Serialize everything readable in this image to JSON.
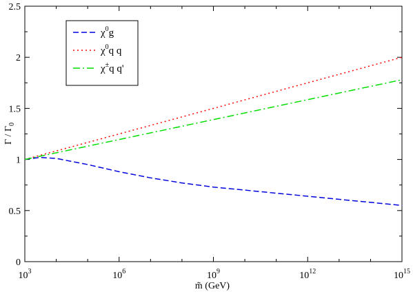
{
  "chart_data": {
    "type": "line",
    "title": "",
    "xlabel": "m̃ (GeV)",
    "ylabel": "Γ / Γ",
    "ylabel_sub": "0",
    "x_scale": "log",
    "xlim": [
      1000,
      1000000000000000.0
    ],
    "ylim": [
      0,
      2.5
    ],
    "grid": false,
    "legend_position": "top-left",
    "x_ticks": [
      {
        "value": 1000,
        "base": "10",
        "exp": "3"
      },
      {
        "value": 1000000,
        "base": "10",
        "exp": "6"
      },
      {
        "value": 1000000000,
        "base": "10",
        "exp": "9"
      },
      {
        "value": 1000000000000,
        "base": "10",
        "exp": "12"
      },
      {
        "value": 1000000000000000,
        "base": "10",
        "exp": "15"
      }
    ],
    "y_ticks": [
      {
        "value": 0,
        "label": "0"
      },
      {
        "value": 0.5,
        "label": "0.5"
      },
      {
        "value": 1,
        "label": "1"
      },
      {
        "value": 1.5,
        "label": "1.5"
      },
      {
        "value": 2,
        "label": "2"
      },
      {
        "value": 2.5,
        "label": "2.5"
      }
    ],
    "series": [
      {
        "name_main": "χ",
        "name_sup": "0",
        "name_rest": "g",
        "color": "#0000dd",
        "dash": "8,4",
        "x": [
          1000,
          3000,
          10000,
          100000,
          1000000,
          10000000,
          100000000,
          1000000000,
          10000000000,
          100000000000,
          1000000000000,
          10000000000000,
          100000000000000,
          1000000000000000
        ],
        "y": [
          1.0,
          1.02,
          1.01,
          0.95,
          0.88,
          0.82,
          0.77,
          0.73,
          0.7,
          0.67,
          0.64,
          0.61,
          0.58,
          0.55
        ]
      },
      {
        "name_main": "χ",
        "name_sup": "0",
        "name_rest": "q q",
        "color": "#ff0000",
        "dash": "2,4",
        "x": [
          1000,
          1000000000000000
        ],
        "y": [
          1.0,
          2.0
        ]
      },
      {
        "name_main": "χ",
        "name_sup": "±",
        "name_rest": "q q'",
        "color": "#00dd00",
        "dash": "10,4,2,4",
        "x": [
          1000,
          1000000000000000
        ],
        "y": [
          1.0,
          1.78
        ]
      }
    ]
  }
}
